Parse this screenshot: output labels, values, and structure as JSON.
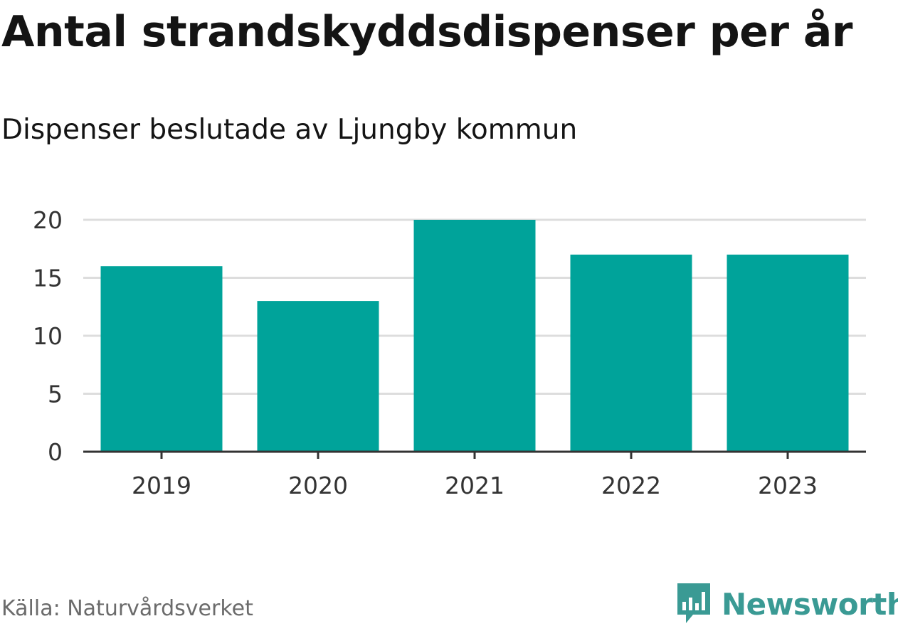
{
  "header": {
    "title": "Antal strandskyddsdispenser per år",
    "subtitle": "Dispenser beslutade av Ljungby kommun"
  },
  "footer": {
    "source": "Källa: Naturvårdsverket",
    "brand": "Newsworthy",
    "brand_icon": "bar-chart-speech-bubble-icon"
  },
  "colors": {
    "bar": "#00a39a",
    "grid": "#dddddd",
    "axis": "#333333",
    "brand": "#3a9a94"
  },
  "chart_data": {
    "type": "bar",
    "title": "Antal strandskyddsdispenser per år",
    "subtitle": "Dispenser beslutade av Ljungby kommun",
    "categories": [
      "2019",
      "2020",
      "2021",
      "2022",
      "2023"
    ],
    "values": [
      16,
      13,
      20,
      17,
      17
    ],
    "yticks": [
      0,
      5,
      10,
      15,
      20
    ],
    "ylim": [
      0,
      20
    ],
    "xlabel": "",
    "ylabel": "",
    "grid": true,
    "legend": "none"
  }
}
